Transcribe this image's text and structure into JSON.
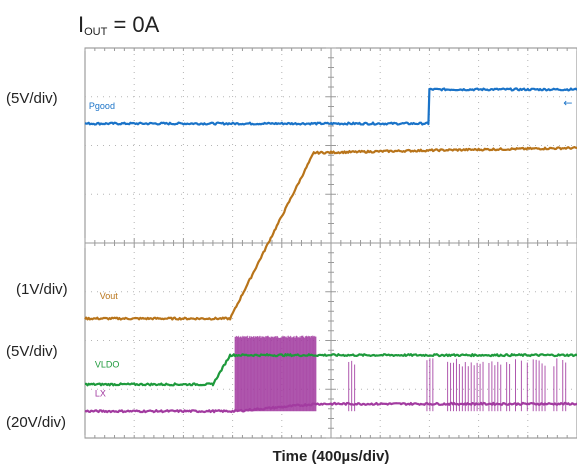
{
  "chart_data": {
    "type": "line",
    "title_main": "I",
    "title_sub": "OUT",
    "title_rest": " = 0A",
    "xlabel": "Time (400µs/div)",
    "x_divisions": 10,
    "y_divisions": 8,
    "x_range_div": [
      0,
      10
    ],
    "grid": true,
    "scale_labels": [
      "(5V/div)",
      "(1V/div)",
      "(5V/div)",
      "(20V/div)"
    ],
    "series": [
      {
        "name": "Pgood",
        "color": "#1a73c8",
        "x": [
          0,
          6.98,
          7.0,
          10
        ],
        "y": [
          6.45,
          6.45,
          7.15,
          7.15
        ]
      },
      {
        "name": "Vout",
        "color": "#b8741a",
        "x": [
          0,
          2.95,
          4.65,
          7.0,
          10
        ],
        "y": [
          2.45,
          2.45,
          5.85,
          5.9,
          5.95
        ]
      },
      {
        "name": "VLDO",
        "color": "#1e9a3c",
        "x": [
          0,
          2.6,
          2.95,
          10
        ],
        "y": [
          1.1,
          1.1,
          1.7,
          1.7
        ]
      },
      {
        "name": "LX",
        "color": "#a23ba0",
        "x": [
          0,
          3.05,
          4.7,
          10
        ],
        "y": [
          0.55,
          0.55,
          0.7,
          0.7
        ]
      }
    ],
    "marker_glyph": "←",
    "lx_bursts": [
      [
        3.05,
        4.7
      ],
      [
        5.3,
        5.5
      ],
      [
        6.95,
        10
      ]
    ]
  }
}
